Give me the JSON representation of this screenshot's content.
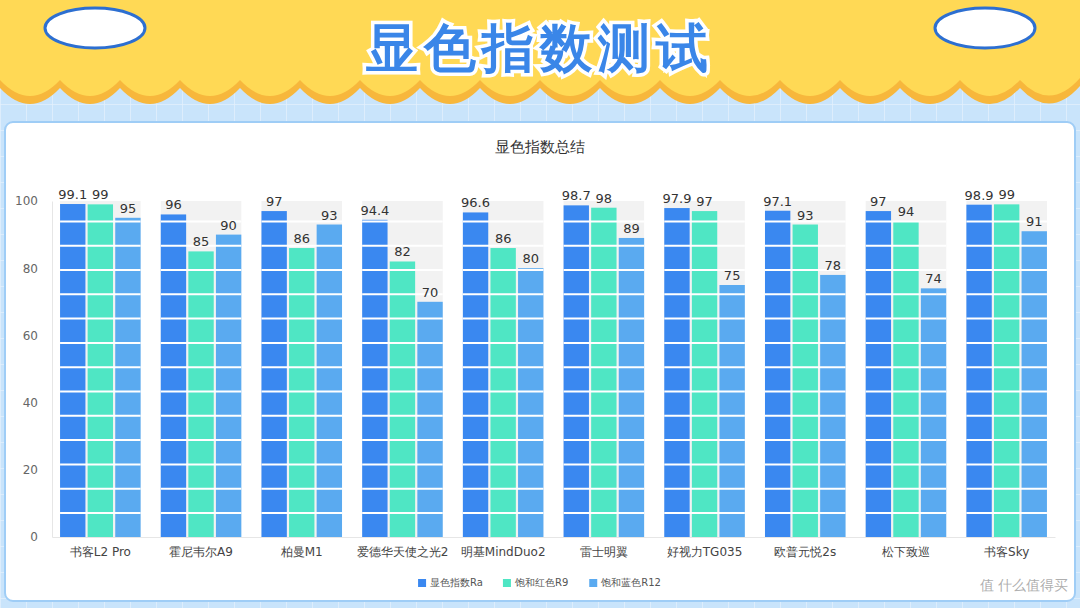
{
  "header": {
    "title": "显色指数测试"
  },
  "watermark": "值 什么值得买",
  "chart_data": {
    "type": "bar",
    "title": "显色指数总结",
    "categories": [
      "书客L2 Pro",
      "霍尼韦尔A9",
      "柏曼M1",
      "爱德华天使之光2",
      "明基MindDuo2",
      "雷士明翼",
      "好视力TG035",
      "欧普元悦2s",
      "松下致巡",
      "书客Sky"
    ],
    "series": [
      {
        "name": "显色指数Ra",
        "color": "#3a88f0",
        "values": [
          99.1,
          96,
          97,
          94.4,
          96.6,
          98.7,
          97.9,
          97.1,
          97,
          98.9
        ]
      },
      {
        "name": "饱和红色R9",
        "color": "#4fe6c4",
        "values": [
          99,
          85,
          86,
          82,
          86,
          98,
          97,
          93,
          94,
          99
        ]
      },
      {
        "name": "饱和蓝色R12",
        "color": "#5aaaf0",
        "values": [
          95,
          90,
          93,
          70,
          80,
          89,
          75,
          78,
          74,
          91
        ]
      }
    ],
    "ylim": [
      0,
      100
    ],
    "yticks": [
      0,
      20,
      40,
      60,
      80,
      100
    ],
    "grid": false,
    "legend": "bottom",
    "data_labels": true
  }
}
